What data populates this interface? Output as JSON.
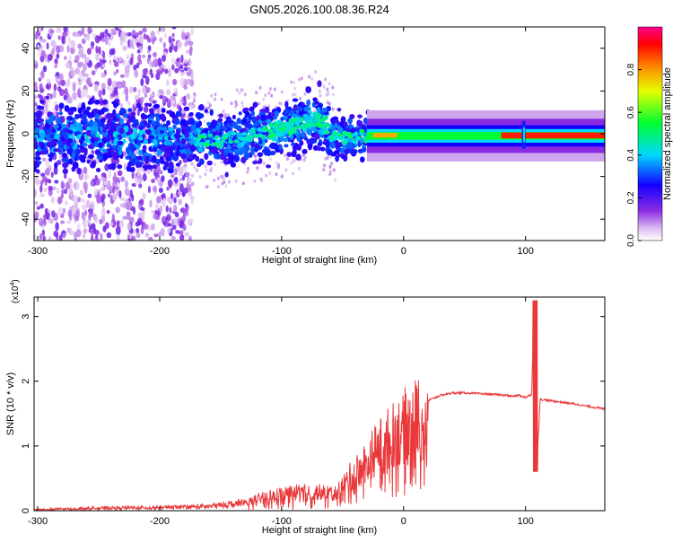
{
  "title": "GN05.2026.100.08.36.R24",
  "chart_data": [
    {
      "type": "heatmap",
      "xlabel": "Height of straight line (km)",
      "ylabel": "Frequency (Hz)",
      "xlim": [
        -303,
        165
      ],
      "ylim": [
        -50,
        50
      ],
      "xticks": [
        -300,
        -200,
        -100,
        0,
        100
      ],
      "yticks": [
        -40,
        -20,
        0,
        20,
        40
      ],
      "colorbar": {
        "label": "Normalized spectral amplitude",
        "range": [
          0,
          1
        ],
        "ticks": [
          "0.0",
          "0.2",
          "0.4",
          "0.6",
          "0.8"
        ],
        "tick_values": [
          0.0,
          0.2,
          0.4,
          0.6,
          0.8
        ],
        "colormap": "rainbow (white-violet-blue-cyan-green-yellow-red-magenta)"
      },
      "ridge": [
        {
          "x": -300,
          "y": -2
        },
        {
          "x": -250,
          "y": -1
        },
        {
          "x": -200,
          "y": -2
        },
        {
          "x": -150,
          "y": -3
        },
        {
          "x": -100,
          "y": 2
        },
        {
          "x": -70,
          "y": 7
        },
        {
          "x": -55,
          "y": -2
        },
        {
          "x": -30,
          "y": -1
        },
        {
          "x": 0,
          "y": -1
        },
        {
          "x": 100,
          "y": -1
        },
        {
          "x": 165,
          "y": -1
        }
      ]
    },
    {
      "type": "line",
      "xlabel": "Height of straight line (km)",
      "ylabel": "SNR (10 * v/v)",
      "multiplier": "(x10",
      "multiplier_exp": "4",
      "multiplier_close": ")",
      "xlim": [
        -303,
        165
      ],
      "ylim": [
        0,
        3.3
      ],
      "xticks": [
        -300,
        -200,
        -100,
        0,
        100
      ],
      "yticks": [
        0,
        1,
        2,
        3
      ],
      "color": "#e8383a",
      "series": [
        {
          "x": [
            -303,
            -250,
            -200,
            -160,
            -130,
            -110,
            -90,
            -70,
            -55,
            -45,
            -35,
            -25,
            -15,
            -5,
            0,
            10,
            20,
            30,
            40,
            50,
            60,
            70,
            80,
            90,
            95,
            100,
            105,
            107,
            109,
            112,
            120,
            140,
            165
          ],
          "values": [
            0.02,
            0.05,
            0.06,
            0.08,
            0.15,
            0.25,
            0.32,
            0.32,
            0.3,
            0.55,
            0.75,
            1.0,
            1.2,
            1.35,
            1.45,
            1.6,
            1.7,
            1.78,
            1.82,
            1.82,
            1.81,
            1.8,
            1.79,
            1.77,
            1.78,
            1.75,
            1.8,
            3.25,
            0.6,
            1.72,
            1.7,
            1.65,
            1.57
          ]
        }
      ]
    }
  ]
}
